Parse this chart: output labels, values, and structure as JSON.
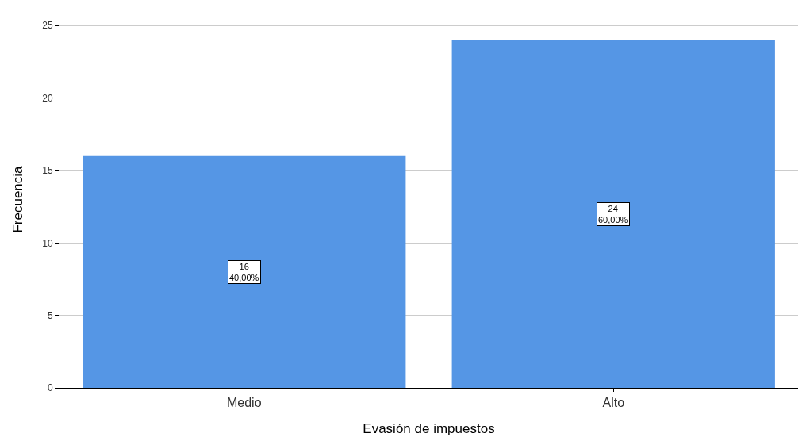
{
  "chart_data": {
    "type": "bar",
    "xlabel": "Evasión de impuestos",
    "ylabel": "Frecuencia",
    "categories": [
      "Medio",
      "Alto"
    ],
    "values": [
      16,
      24
    ],
    "value_labels": [
      "16\n40,00%",
      "24\n60,00%"
    ],
    "color": "#5596e5",
    "ylim": [
      0,
      26
    ],
    "yticks": [
      0,
      5,
      10,
      15,
      20,
      25
    ],
    "grid": "y",
    "legend": false
  }
}
